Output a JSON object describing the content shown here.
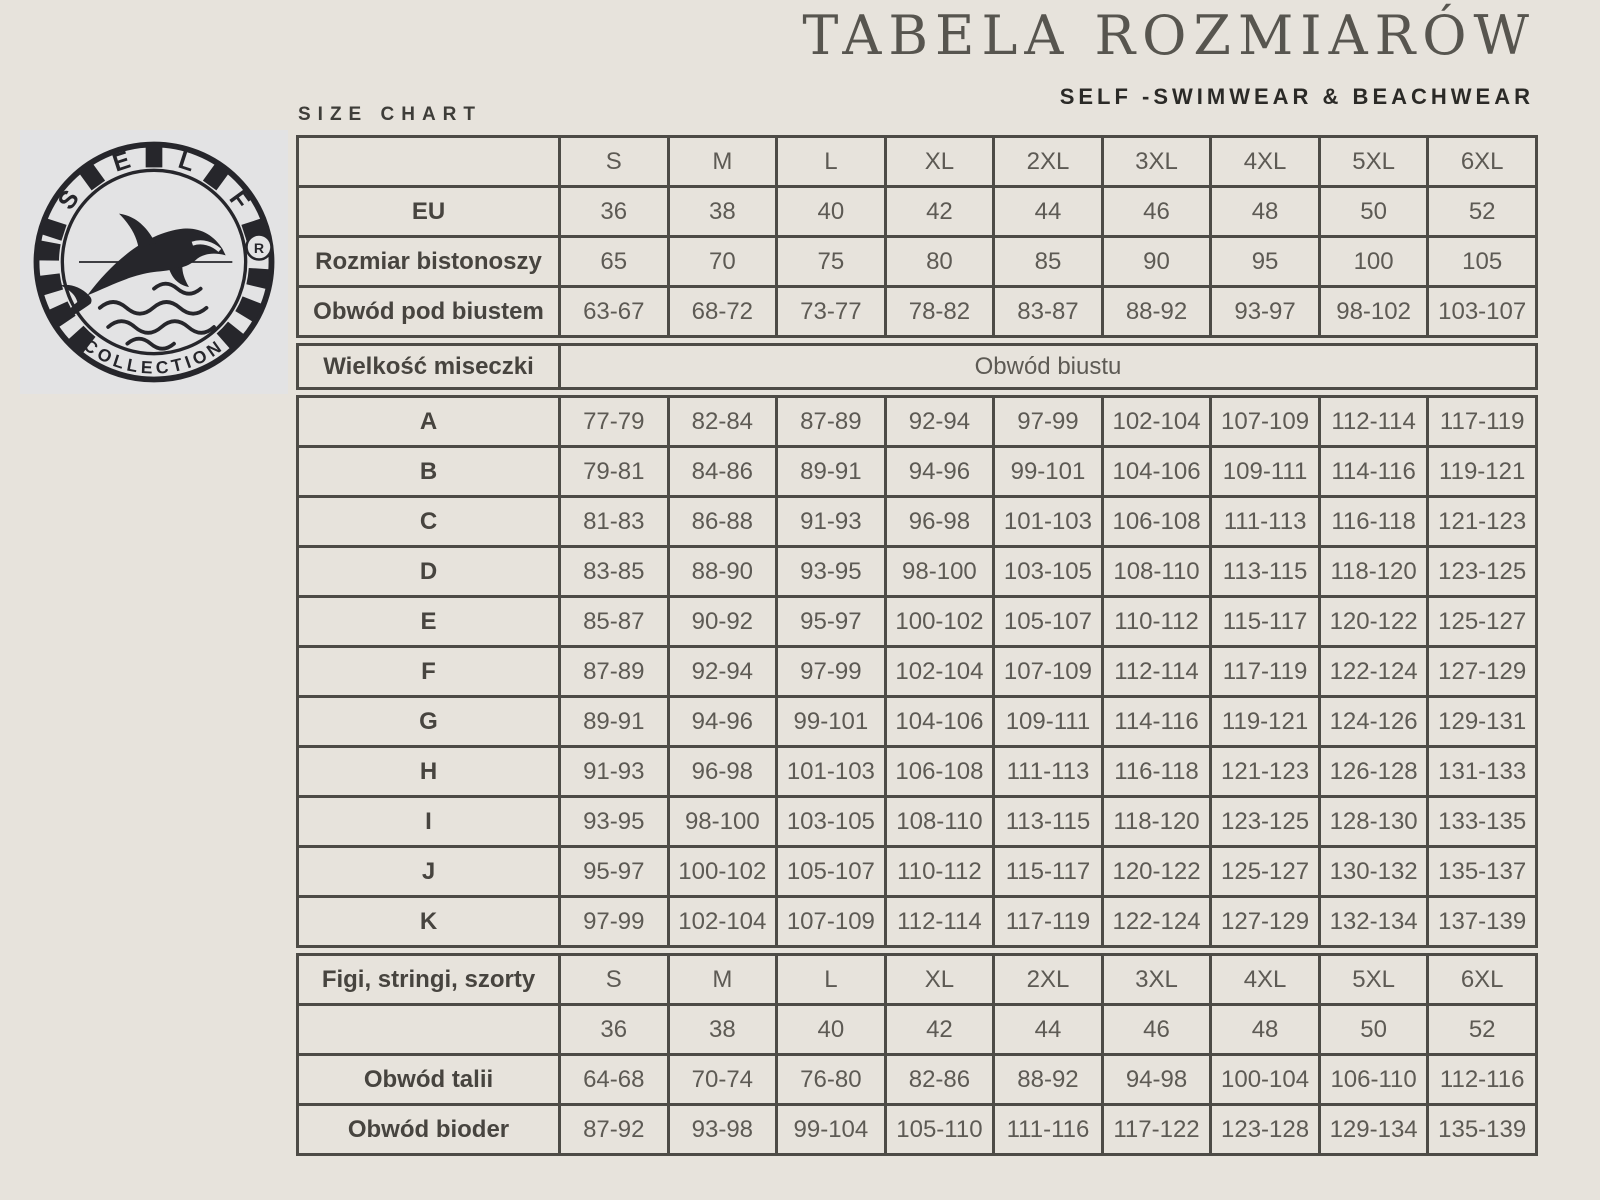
{
  "header": {
    "title": "TABELA ROZMIARÓW",
    "subtitle": "SELF -SWIMWEAR & BEACHWEAR",
    "size_chart_label": "SIZE CHART"
  },
  "logo": {
    "letters": [
      "S",
      "E",
      "L",
      "F"
    ],
    "brand_bottom": "COLLECTION",
    "registered_mark": "R"
  },
  "colors": {
    "page_background": "#e7e3dc",
    "table_border": "#4d4b46",
    "label_text": "#47443f",
    "value_text": "#5d5a54",
    "title_text": "#57554f",
    "subtitle_text": "#2b2a27",
    "logo_background": "#e3e3e4",
    "logo_ink": "#26262b"
  },
  "sections": {
    "top": {
      "rows": [
        {
          "label": "",
          "values": [
            "S",
            "M",
            "L",
            "XL",
            "2XL",
            "3XL",
            "4XL",
            "5XL",
            "6XL"
          ]
        },
        {
          "label": "EU",
          "values": [
            "36",
            "38",
            "40",
            "42",
            "44",
            "46",
            "48",
            "50",
            "52"
          ]
        },
        {
          "label": "Rozmiar bistonoszy",
          "values": [
            "65",
            "70",
            "75",
            "80",
            "85",
            "90",
            "95",
            "100",
            "105"
          ]
        },
        {
          "label": "Obwód pod biustem",
          "values": [
            "63-67",
            "68-72",
            "73-77",
            "78-82",
            "83-87",
            "88-92",
            "93-97",
            "98-102",
            "103-107"
          ]
        }
      ]
    },
    "cups_header": {
      "rows": [
        {
          "label": "Wielkość miseczki",
          "span_value": "Obwód biustu"
        }
      ]
    },
    "cups": {
      "rows": [
        {
          "label": "A",
          "values": [
            "77-79",
            "82-84",
            "87-89",
            "92-94",
            "97-99",
            "102-104",
            "107-109",
            "112-114",
            "117-119"
          ]
        },
        {
          "label": "B",
          "values": [
            "79-81",
            "84-86",
            "89-91",
            "94-96",
            "99-101",
            "104-106",
            "109-111",
            "114-116",
            "119-121"
          ]
        },
        {
          "label": "C",
          "values": [
            "81-83",
            "86-88",
            "91-93",
            "96-98",
            "101-103",
            "106-108",
            "111-113",
            "116-118",
            "121-123"
          ]
        },
        {
          "label": "D",
          "values": [
            "83-85",
            "88-90",
            "93-95",
            "98-100",
            "103-105",
            "108-110",
            "113-115",
            "118-120",
            "123-125"
          ]
        },
        {
          "label": "E",
          "values": [
            "85-87",
            "90-92",
            "95-97",
            "100-102",
            "105-107",
            "110-112",
            "115-117",
            "120-122",
            "125-127"
          ]
        },
        {
          "label": "F",
          "values": [
            "87-89",
            "92-94",
            "97-99",
            "102-104",
            "107-109",
            "112-114",
            "117-119",
            "122-124",
            "127-129"
          ]
        },
        {
          "label": "G",
          "values": [
            "89-91",
            "94-96",
            "99-101",
            "104-106",
            "109-111",
            "114-116",
            "119-121",
            "124-126",
            "129-131"
          ]
        },
        {
          "label": "H",
          "values": [
            "91-93",
            "96-98",
            "101-103",
            "106-108",
            "111-113",
            "116-118",
            "121-123",
            "126-128",
            "131-133"
          ]
        },
        {
          "label": "I",
          "values": [
            "93-95",
            "98-100",
            "103-105",
            "108-110",
            "113-115",
            "118-120",
            "123-125",
            "128-130",
            "133-135"
          ]
        },
        {
          "label": "J",
          "values": [
            "95-97",
            "100-102",
            "105-107",
            "110-112",
            "115-117",
            "120-122",
            "125-127",
            "130-132",
            "135-137"
          ]
        },
        {
          "label": "K",
          "values": [
            "97-99",
            "102-104",
            "107-109",
            "112-114",
            "117-119",
            "122-124",
            "127-129",
            "132-134",
            "137-139"
          ]
        }
      ]
    },
    "bottoms": {
      "rows": [
        {
          "label": "Figi, stringi, szorty",
          "values": [
            "S",
            "M",
            "L",
            "XL",
            "2XL",
            "3XL",
            "4XL",
            "5XL",
            "6XL"
          ]
        },
        {
          "label": "",
          "values": [
            "36",
            "38",
            "40",
            "42",
            "44",
            "46",
            "48",
            "50",
            "52"
          ]
        },
        {
          "label": "Obwód talii",
          "values": [
            "64-68",
            "70-74",
            "76-80",
            "82-86",
            "88-92",
            "94-98",
            "100-104",
            "106-110",
            "112-116"
          ]
        },
        {
          "label": "Obwód bioder",
          "values": [
            "87-92",
            "93-98",
            "99-104",
            "105-110",
            "111-116",
            "117-122",
            "123-128",
            "129-134",
            "135-139"
          ]
        }
      ]
    }
  }
}
